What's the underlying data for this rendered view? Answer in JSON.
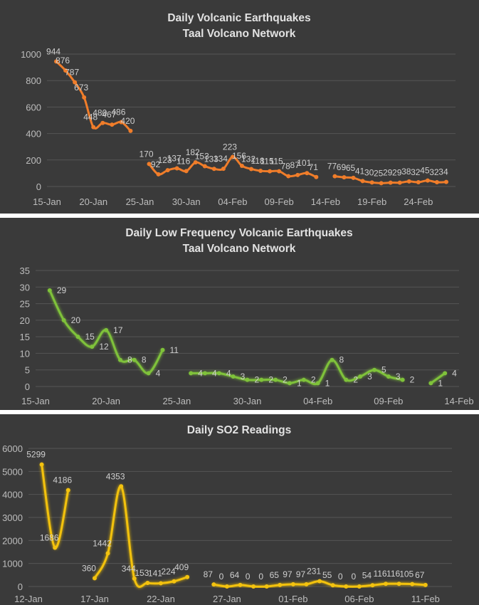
{
  "chart_data": [
    {
      "type": "line",
      "title": [
        "Daily Volcanic Earthquakes",
        "Taal Volcano Network"
      ],
      "xlabel": "",
      "ylabel": "",
      "ylim": [
        0,
        1000
      ],
      "yticks": [
        0,
        200,
        400,
        600,
        800,
        1000
      ],
      "xlim": [
        "2020-01-15",
        "2020-02-28"
      ],
      "xticks": [
        "15-Jan",
        "20-Jan",
        "25-Jan",
        "30-Jan",
        "04-Feb",
        "09-Feb",
        "14-Feb",
        "19-Feb",
        "24-Feb"
      ],
      "grid": true,
      "legend": "none",
      "color": "#f07d2a",
      "series": [
        {
          "points": [
            {
              "x": "2020-01-16",
              "y": 944
            },
            {
              "x": "2020-01-17",
              "y": 876
            },
            {
              "x": "2020-01-18",
              "y": 787
            },
            {
              "x": "2020-01-19",
              "y": 673
            },
            {
              "x": "2020-01-20",
              "y": 448
            },
            {
              "x": "2020-01-21",
              "y": 480
            },
            {
              "x": "2020-01-22",
              "y": 467
            },
            {
              "x": "2020-01-23",
              "y": 486
            },
            {
              "x": "2020-01-24",
              "y": 420
            }
          ]
        },
        {
          "points": [
            {
              "x": "2020-01-26",
              "y": 170
            },
            {
              "x": "2020-01-27",
              "y": 92
            },
            {
              "x": "2020-01-28",
              "y": 123
            },
            {
              "x": "2020-01-29",
              "y": 137
            },
            {
              "x": "2020-01-30",
              "y": 116
            },
            {
              "x": "2020-01-31",
              "y": 182
            },
            {
              "x": "2020-02-01",
              "y": 153
            },
            {
              "x": "2020-02-02",
              "y": 133
            },
            {
              "x": "2020-02-03",
              "y": 134
            },
            {
              "x": "2020-02-04",
              "y": 223
            },
            {
              "x": "2020-02-05",
              "y": 156
            },
            {
              "x": "2020-02-06",
              "y": 132
            },
            {
              "x": "2020-02-07",
              "y": 118
            },
            {
              "x": "2020-02-08",
              "y": 115
            },
            {
              "x": "2020-02-09",
              "y": 115
            },
            {
              "x": "2020-02-10",
              "y": 78
            },
            {
              "x": "2020-02-11",
              "y": 87
            },
            {
              "x": "2020-02-12",
              "y": 101
            },
            {
              "x": "2020-02-13",
              "y": 71
            }
          ]
        },
        {
          "points": [
            {
              "x": "2020-02-15",
              "y": 77
            },
            {
              "x": "2020-02-16",
              "y": 69
            },
            {
              "x": "2020-02-17",
              "y": 65
            },
            {
              "x": "2020-02-18",
              "y": 41
            },
            {
              "x": "2020-02-19",
              "y": 30
            },
            {
              "x": "2020-02-20",
              "y": 25
            },
            {
              "x": "2020-02-21",
              "y": 29
            },
            {
              "x": "2020-02-22",
              "y": 29
            },
            {
              "x": "2020-02-23",
              "y": 38
            },
            {
              "x": "2020-02-24",
              "y": 32
            },
            {
              "x": "2020-02-25",
              "y": 45
            },
            {
              "x": "2020-02-26",
              "y": 32
            },
            {
              "x": "2020-02-27",
              "y": 34
            }
          ]
        }
      ]
    },
    {
      "type": "line",
      "title": [
        "Daily Low Frequency Volcanic Earthquakes",
        "Taal Volcano Network"
      ],
      "xlabel": "",
      "ylabel": "",
      "ylim": [
        0,
        35
      ],
      "yticks": [
        0,
        5,
        10,
        15,
        20,
        25,
        30,
        35
      ],
      "xlim": [
        "2020-01-15",
        "2020-02-14"
      ],
      "xticks": [
        "15-Jan",
        "20-Jan",
        "25-Jan",
        "30-Jan",
        "04-Feb",
        "09-Feb",
        "14-Feb"
      ],
      "grid": true,
      "legend": "none",
      "color": "#7fc23a",
      "series": [
        {
          "points": [
            {
              "x": "2020-01-16",
              "y": 29
            },
            {
              "x": "2020-01-17",
              "y": 20
            },
            {
              "x": "2020-01-18",
              "y": 15
            },
            {
              "x": "2020-01-19",
              "y": 12
            },
            {
              "x": "2020-01-20",
              "y": 17
            },
            {
              "x": "2020-01-21",
              "y": 8
            },
            {
              "x": "2020-01-22",
              "y": 8
            },
            {
              "x": "2020-01-23",
              "y": 4
            },
            {
              "x": "2020-01-24",
              "y": 11
            }
          ]
        },
        {
          "points": [
            {
              "x": "2020-01-26",
              "y": 4
            },
            {
              "x": "2020-01-27",
              "y": 4
            },
            {
              "x": "2020-01-28",
              "y": 4
            },
            {
              "x": "2020-01-29",
              "y": 3
            },
            {
              "x": "2020-01-30",
              "y": 2
            },
            {
              "x": "2020-01-31",
              "y": 2
            },
            {
              "x": "2020-02-01",
              "y": 2
            },
            {
              "x": "2020-02-02",
              "y": 1
            },
            {
              "x": "2020-02-03",
              "y": 2
            },
            {
              "x": "2020-02-04",
              "y": 1
            },
            {
              "x": "2020-02-05",
              "y": 8
            },
            {
              "x": "2020-02-06",
              "y": 2
            },
            {
              "x": "2020-02-07",
              "y": 3
            },
            {
              "x": "2020-02-08",
              "y": 5
            },
            {
              "x": "2020-02-09",
              "y": 3
            },
            {
              "x": "2020-02-10",
              "y": 2
            }
          ]
        },
        {
          "points": [
            {
              "x": "2020-02-12",
              "y": 1
            },
            {
              "x": "2020-02-13",
              "y": 4
            }
          ]
        }
      ]
    },
    {
      "type": "line",
      "title": [
        "Daily SO2 Readings"
      ],
      "xlabel": "",
      "ylabel": "",
      "ylim": [
        0,
        6000
      ],
      "yticks": [
        0,
        1000,
        2000,
        3000,
        4000,
        5000,
        6000
      ],
      "xlim": [
        "2020-01-12",
        "2020-02-13"
      ],
      "xticks": [
        "12-Jan",
        "17-Jan",
        "22-Jan",
        "27-Jan",
        "01-Feb",
        "06-Feb",
        "11-Feb"
      ],
      "grid": true,
      "legend": "none",
      "color": "#f3c20f",
      "series": [
        {
          "points": [
            {
              "x": "2020-01-13",
              "y": 5299
            },
            {
              "x": "2020-01-14",
              "y": 1686
            },
            {
              "x": "2020-01-15",
              "y": 4186
            }
          ]
        },
        {
          "points": [
            {
              "x": "2020-01-17",
              "y": 360
            },
            {
              "x": "2020-01-18",
              "y": 1442
            },
            {
              "x": "2020-01-19",
              "y": 4353
            },
            {
              "x": "2020-01-20",
              "y": 344
            },
            {
              "x": "2020-01-21",
              "y": 153
            },
            {
              "x": "2020-01-22",
              "y": 141
            },
            {
              "x": "2020-01-23",
              "y": 224
            },
            {
              "x": "2020-01-24",
              "y": 409
            }
          ]
        },
        {
          "points": [
            {
              "x": "2020-01-26",
              "y": 87
            },
            {
              "x": "2020-01-27",
              "y": 0
            },
            {
              "x": "2020-01-28",
              "y": 64
            },
            {
              "x": "2020-01-29",
              "y": 0
            },
            {
              "x": "2020-01-30",
              "y": 0
            },
            {
              "x": "2020-01-31",
              "y": 65
            },
            {
              "x": "2020-02-01",
              "y": 97
            },
            {
              "x": "2020-02-02",
              "y": 97
            },
            {
              "x": "2020-02-03",
              "y": 231
            },
            {
              "x": "2020-02-04",
              "y": 55
            },
            {
              "x": "2020-02-05",
              "y": 0
            },
            {
              "x": "2020-02-06",
              "y": 0
            },
            {
              "x": "2020-02-07",
              "y": 54
            },
            {
              "x": "2020-02-08",
              "y": 116
            },
            {
              "x": "2020-02-09",
              "y": 116
            },
            {
              "x": "2020-02-10",
              "y": 105
            },
            {
              "x": "2020-02-11",
              "y": 67
            }
          ]
        }
      ]
    }
  ]
}
